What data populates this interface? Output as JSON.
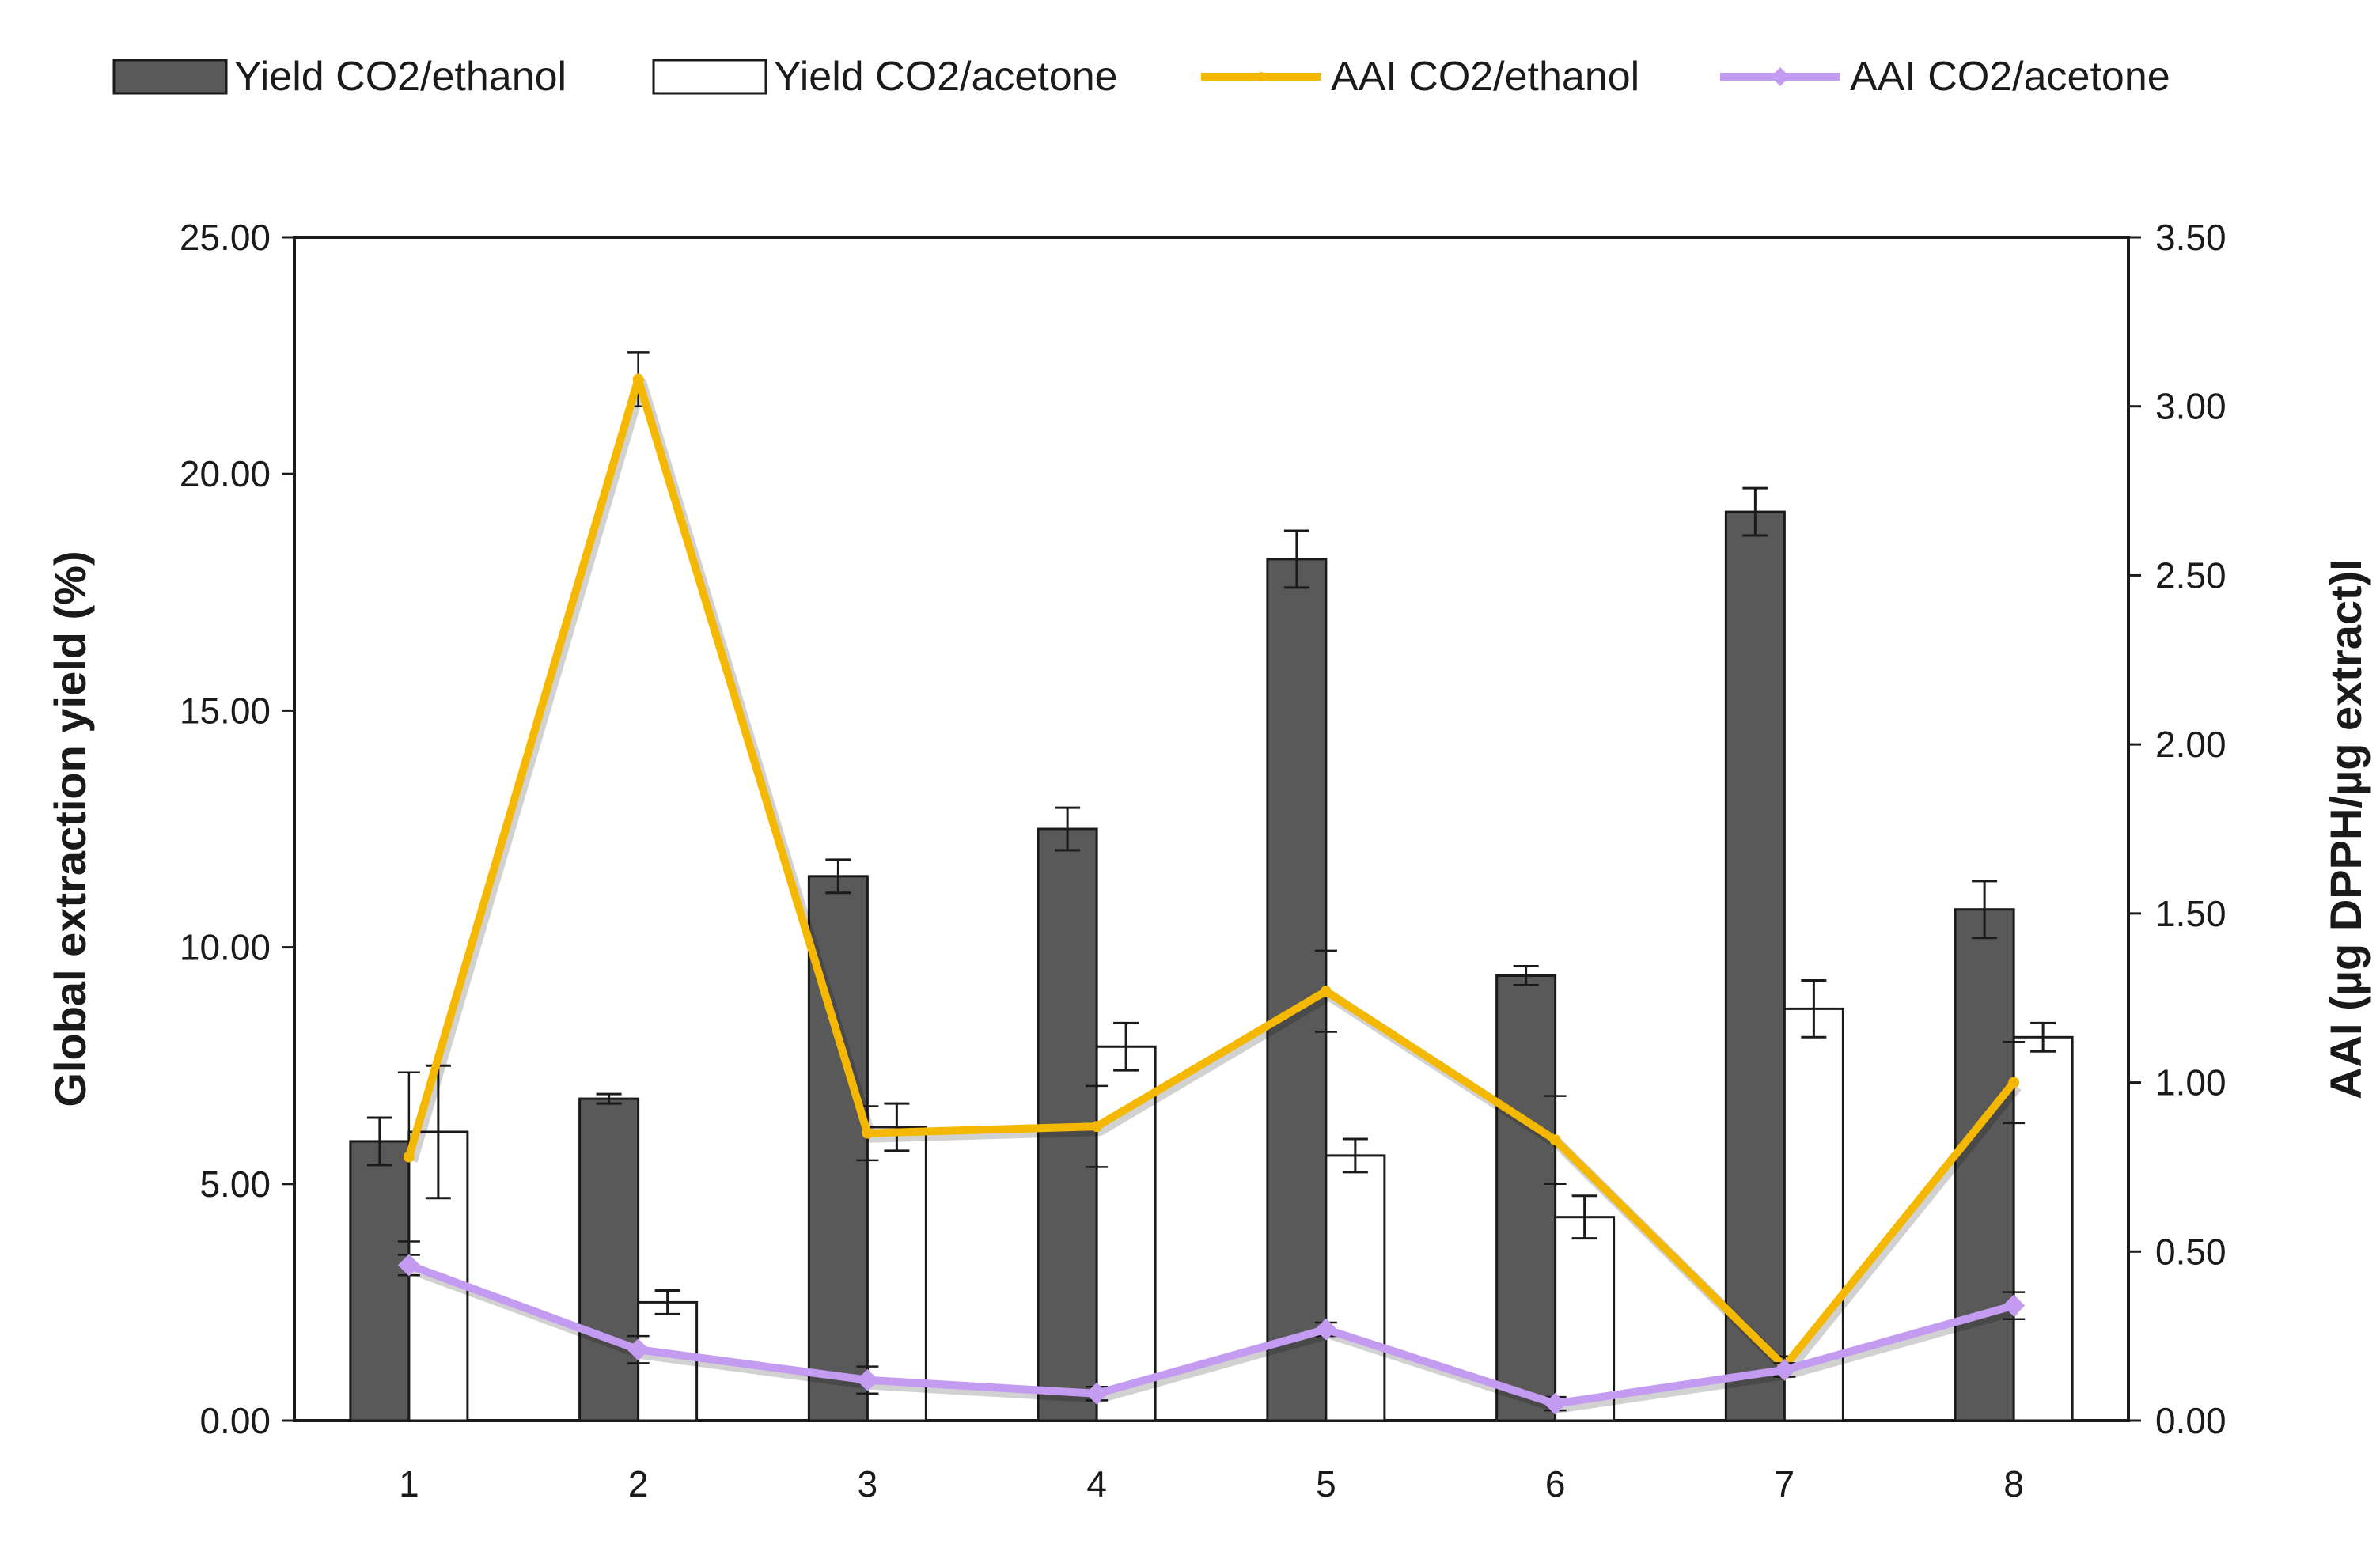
{
  "chart_data": {
    "type": "bar",
    "title": "",
    "xlabel": "",
    "ylabel": "Global extraction yield (%)",
    "y2label": "AAI (µg DPPH/µg extract)I",
    "ylim": [
      0,
      25
    ],
    "y2lim": [
      0,
      3.5
    ],
    "y_ticks": [
      "0.00",
      "5.00",
      "10.00",
      "15.00",
      "20.00",
      "25.00"
    ],
    "y2_ticks": [
      "0.00",
      "0.50",
      "1.00",
      "1.50",
      "2.00",
      "2.50",
      "3.00",
      "3.50"
    ],
    "categories": [
      "1",
      "2",
      "3",
      "4",
      "5",
      "6",
      "7",
      "8"
    ],
    "legend_position": "top",
    "bar_series": [
      {
        "name": "Yield CO2/ethanol",
        "color": "#595959",
        "values": [
          5.9,
          6.8,
          11.5,
          12.5,
          18.2,
          9.4,
          19.2,
          10.8
        ],
        "errors": [
          0.5,
          0.1,
          0.35,
          0.45,
          0.6,
          0.2,
          0.5,
          0.6
        ]
      },
      {
        "name": "Yield CO2/acetone",
        "color": "#ffffff",
        "values": [
          6.1,
          2.5,
          6.2,
          7.9,
          5.6,
          4.3,
          8.7,
          8.1
        ],
        "errors": [
          1.4,
          0.25,
          0.5,
          0.5,
          0.35,
          0.45,
          0.6,
          0.3
        ]
      }
    ],
    "line_series": [
      {
        "name": "AAI CO2/ethanol",
        "color": "#f5b800",
        "axis": "right",
        "values": [
          0.78,
          3.08,
          0.85,
          0.87,
          1.27,
          0.83,
          0.16,
          1.0
        ],
        "errors": [
          0.25,
          0.08,
          0.08,
          0.12,
          0.12,
          0.13,
          0.03,
          0.12
        ]
      },
      {
        "name": "AAI CO2/acetone",
        "color": "#c39bf0",
        "axis": "right",
        "values": [
          0.46,
          0.21,
          0.12,
          0.08,
          0.27,
          0.05,
          0.15,
          0.34
        ],
        "errors": [
          0.03,
          0.04,
          0.04,
          0.02,
          0.02,
          0.02,
          0.02,
          0.04
        ]
      }
    ]
  }
}
